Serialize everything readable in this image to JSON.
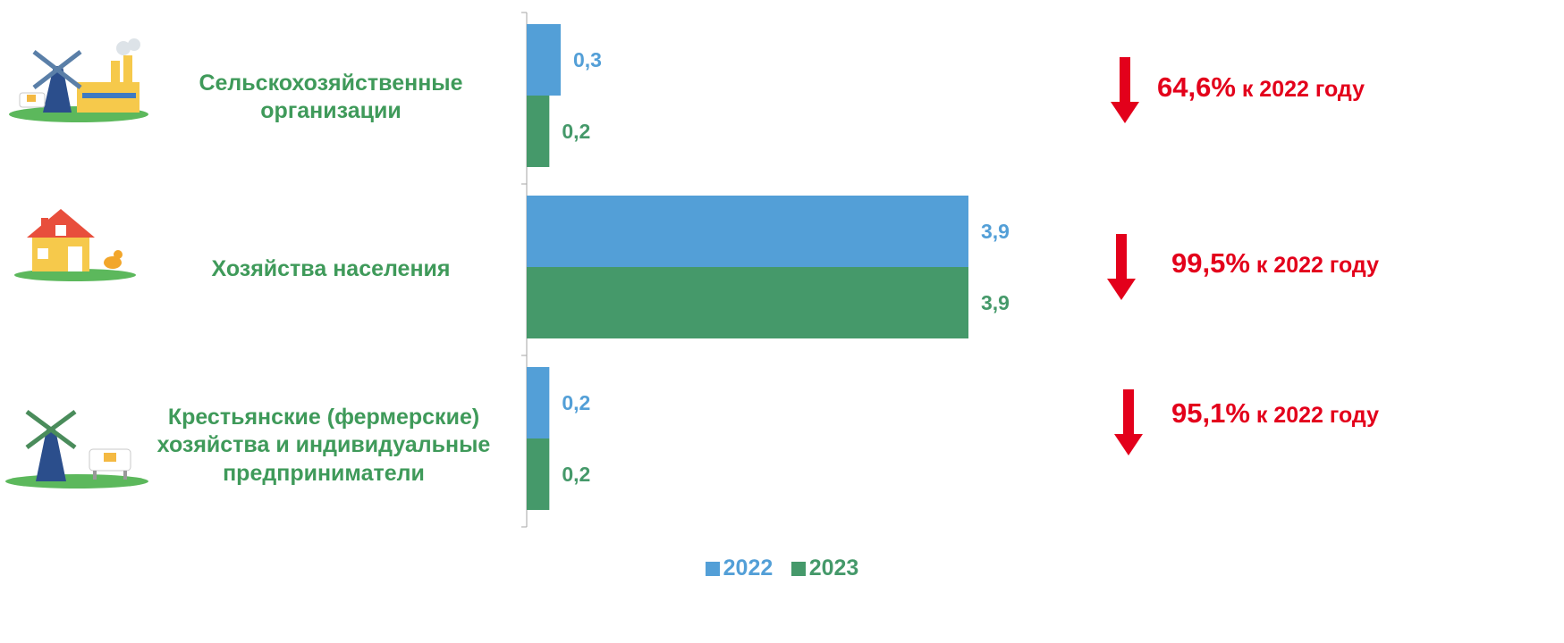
{
  "chart_data": {
    "type": "bar",
    "orientation": "horizontal",
    "categories": [
      "Сельскохозяйственные организации",
      "Хозяйства населения",
      "Крестьянские (фермерские) хозяйства и индивидуальные предприниматели"
    ],
    "category_lines": [
      [
        "Сельскохозяйственные",
        "организации"
      ],
      [
        "Хозяйства населения"
      ],
      [
        "Крестьянские (фермерские)",
        "хозяйства и индивидуальные",
        "предприниматели"
      ]
    ],
    "series": [
      {
        "name": "2022",
        "values": [
          0.3,
          3.9,
          0.2
        ],
        "labels": [
          "0,3",
          "3,9",
          "0,2"
        ],
        "color": "#539fd7"
      },
      {
        "name": "2023",
        "values": [
          0.2,
          3.9,
          0.2
        ],
        "labels": [
          "0,2",
          "3,9",
          "0,2"
        ],
        "color": "#45996a"
      }
    ],
    "xlim": [
      0,
      3.9
    ],
    "legend_position": "bottom-center",
    "grid": false
  },
  "changes": [
    {
      "value": "64,6%",
      "text": " к 2022 году",
      "direction": "down"
    },
    {
      "value": "99,5%",
      "text": " к 2022 году",
      "direction": "down"
    },
    {
      "value": "95,1%",
      "text": " к 2022 году",
      "direction": "down"
    }
  ],
  "icons": [
    "farm-factory-icon",
    "house-chicken-icon",
    "windmill-cow-icon"
  ],
  "colors": {
    "label_green": "#3f9a5a",
    "accent_red": "#e3001b",
    "axis": "#a6a6a6"
  }
}
